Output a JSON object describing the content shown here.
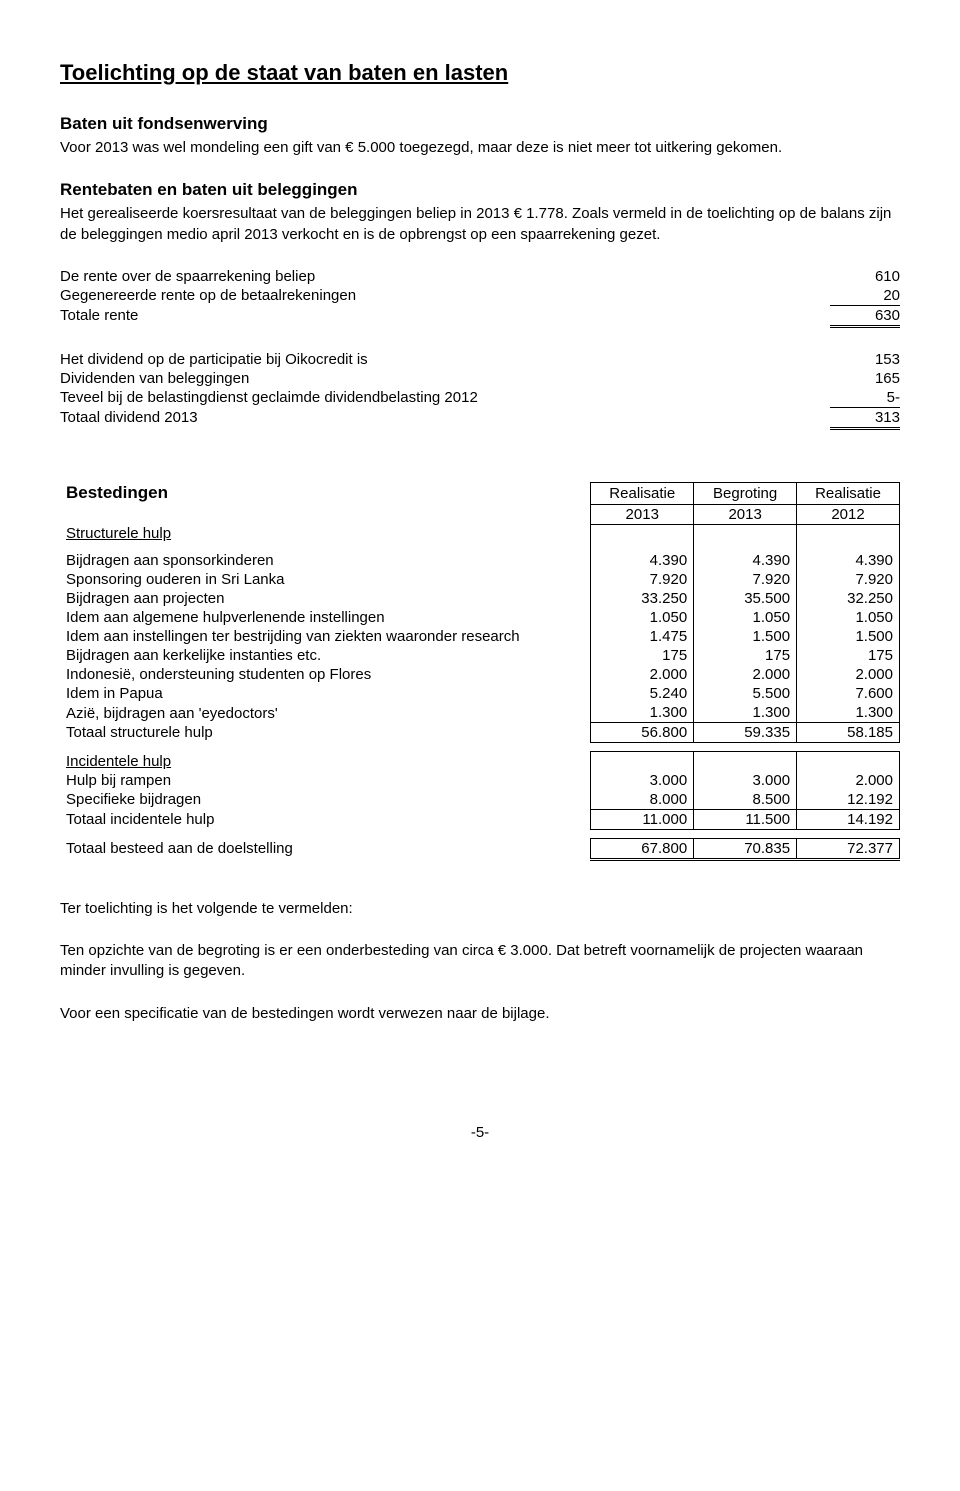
{
  "title": "Toelichting op de staat van baten en lasten",
  "s1": {
    "heading": "Baten uit fondsenwerving",
    "text": "Voor 2013 was wel mondeling een gift van € 5.000 toegezegd, maar deze is niet meer tot uitkering gekomen."
  },
  "s2": {
    "heading": "Rentebaten en baten uit beleggingen",
    "text": "Het gerealiseerde koersresultaat van de beleggingen beliep in 2013 € 1.778. Zoals vermeld in de toelichting op de balans zijn de beleggingen medio april 2013 verkocht en is de opbrengst op een spaarrekening gezet."
  },
  "rente": {
    "r1": {
      "label": "De rente over de spaarrekening beliep",
      "val": "610"
    },
    "r2": {
      "label": "Gegenereerde rente op de betaalrekeningen",
      "val": "20"
    },
    "total": {
      "label": "Totale rente",
      "val": "630"
    }
  },
  "dividend": {
    "d1": {
      "label": "Het dividend op de participatie bij Oikocredit is",
      "val": "153"
    },
    "d2": {
      "label": "Dividenden van beleggingen",
      "val": "165"
    },
    "d3": {
      "label": "Teveel bij de belastingdienst geclaimde dividendbelasting 2012",
      "val": "5-"
    },
    "total": {
      "label": "Totaal dividend 2013",
      "val": "313"
    }
  },
  "best": {
    "heading": "Bestedingen",
    "colheaders": {
      "c1a": "Realisatie",
      "c1b": "2013",
      "c2a": "Begroting",
      "c2b": "2013",
      "c3a": "Realisatie",
      "c3b": "2012"
    },
    "struct_label": "Structurele hulp",
    "rows_struct": [
      {
        "label": "Bijdragen aan sponsorkinderen",
        "v1": "4.390",
        "v2": "4.390",
        "v3": "4.390"
      },
      {
        "label": "Sponsoring ouderen in Sri Lanka",
        "v1": "7.920",
        "v2": "7.920",
        "v3": "7.920"
      },
      {
        "label": "Bijdragen aan projecten",
        "v1": "33.250",
        "v2": "35.500",
        "v3": "32.250"
      },
      {
        "label": "Idem aan algemene hulpverlenende instellingen",
        "v1": "1.050",
        "v2": "1.050",
        "v3": "1.050"
      },
      {
        "label": "Idem aan instellingen ter bestrijding van ziekten waaronder research",
        "v1": "1.475",
        "v2": "1.500",
        "v3": "1.500"
      },
      {
        "label": "Bijdragen aan kerkelijke instanties etc.",
        "v1": "175",
        "v2": "175",
        "v3": "175"
      },
      {
        "label": "Indonesië, ondersteuning studenten op Flores",
        "v1": "2.000",
        "v2": "2.000",
        "v3": "2.000"
      },
      {
        "label": "Idem in Papua",
        "v1": "5.240",
        "v2": "5.500",
        "v3": "7.600"
      },
      {
        "label": "Azië, bijdragen aan 'eyedoctors'",
        "v1": "1.300",
        "v2": "1.300",
        "v3": "1.300"
      }
    ],
    "struct_total": {
      "label": "Totaal structurele hulp",
      "v1": "56.800",
      "v2": "59.335",
      "v3": "58.185"
    },
    "incid_label": "Incidentele hulp",
    "rows_incid": [
      {
        "label": "Hulp bij rampen",
        "v1": "3.000",
        "v2": "3.000",
        "v3": "2.000"
      },
      {
        "label": "Specifieke bijdragen",
        "v1": "8.000",
        "v2": "8.500",
        "v3": "12.192"
      }
    ],
    "incid_total": {
      "label": "Totaal incidentele hulp",
      "v1": "11.000",
      "v2": "11.500",
      "v3": "14.192"
    },
    "grand_total": {
      "label": "Totaal besteed aan de doelstelling",
      "v1": "67.800",
      "v2": "70.835",
      "v3": "72.377"
    }
  },
  "closing": {
    "p1": "Ter toelichting is het volgende te vermelden:",
    "p2": "Ten opzichte van de begroting is er een onderbesteding van circa € 3.000. Dat betreft voornamelijk de projecten waaraan minder invulling is gegeven.",
    "p3": "Voor een specificatie van de bestedingen wordt verwezen naar de bijlage."
  },
  "pagenum": "-5-"
}
